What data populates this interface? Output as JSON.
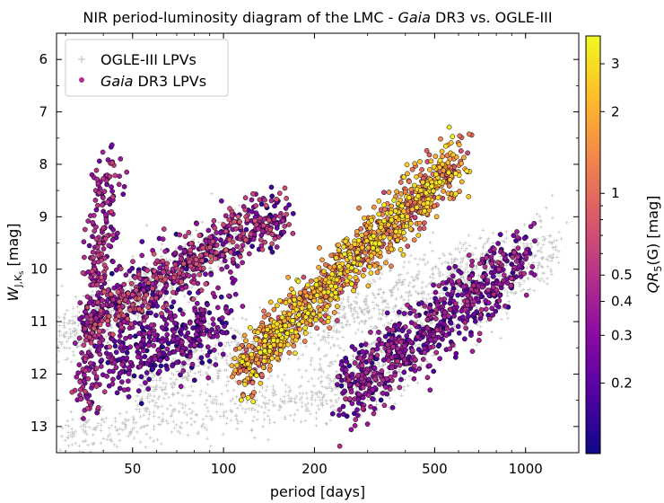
{
  "chart_data": {
    "type": "scatter",
    "title": "NIR period-luminosity diagram of the LMC - Gaia DR3 vs. OGLE-III",
    "title_parts": {
      "before": "NIR period-luminosity diagram of the LMC - ",
      "italic": "Gaia",
      "after": " DR3 vs. OGLE-III"
    },
    "xlabel": "period [days]",
    "x_scale": "log",
    "xlim": [
      28,
      1500
    ],
    "x_ticks": [
      50,
      100,
      200,
      500,
      1000
    ],
    "x_tick_labels": [
      "50",
      "100",
      "200",
      "500",
      "1000"
    ],
    "ylabel": {
      "main": "W",
      "sub": "J,K",
      "subsub": "s",
      "unit": " [mag]"
    },
    "ylim": [
      13.5,
      5.5
    ],
    "y_inverted": true,
    "y_ticks": [
      6,
      7,
      8,
      9,
      10,
      11,
      12,
      13
    ],
    "y_tick_labels": [
      "6",
      "7",
      "8",
      "9",
      "10",
      "11",
      "12",
      "13"
    ],
    "legend": {
      "position": "top-left",
      "entries": [
        {
          "label": "OGLE-III LPVs",
          "marker": "plus",
          "color": "#bdbdbd"
        },
        {
          "label_italic": "Gaia",
          "label_rest": " DR3 LPVs",
          "marker": "circle",
          "color": "#b52f8c"
        }
      ]
    },
    "colorbar": {
      "label": {
        "main": "QR",
        "sub": "5",
        "rest": "(G) [mag]"
      },
      "scale": "log",
      "range": [
        0.11,
        3.8
      ],
      "ticks": [
        0.2,
        0.3,
        0.4,
        0.5,
        1,
        2,
        3
      ],
      "tick_labels": [
        "0.2",
        "0.3",
        "0.4",
        "0.5",
        "1",
        "2",
        "3"
      ],
      "colormap": "plasma",
      "colormap_stops": [
        "#0d0887",
        "#5302a3",
        "#8b0aa5",
        "#b83289",
        "#db5c68",
        "#f48849",
        "#febd2a",
        "#f0f921"
      ]
    },
    "series": [
      {
        "name": "OGLE-III LPVs",
        "color": "#bdbdbd",
        "sequences": [
          {
            "logP_start": 1.4,
            "logP_end": 2.05,
            "W_start": 11.6,
            "W_end": 9.3,
            "width": 0.25,
            "count": 700
          },
          {
            "logP_start": 1.7,
            "logP_end": 2.9,
            "W_start": 12.3,
            "W_end": 9.8,
            "width": 0.3,
            "count": 900
          },
          {
            "logP_start": 2.3,
            "logP_end": 3.1,
            "W_start": 12.4,
            "W_end": 9.5,
            "width": 0.35,
            "count": 700
          },
          {
            "logP_start": 1.45,
            "logP_end": 2.6,
            "W_start": 13.2,
            "W_end": 12.1,
            "width": 0.25,
            "count": 500
          }
        ]
      },
      {
        "name": "Gaia DR3 LPVs",
        "sequences": [
          {
            "logP_start": 1.58,
            "logP_end": 2.2,
            "W_start": 10.9,
            "W_end": 8.9,
            "width": 0.3,
            "qr_min": 0.12,
            "qr_max": 0.8,
            "count": 650
          },
          {
            "logP_start": 2.05,
            "logP_end": 2.78,
            "W_start": 12.0,
            "W_end": 7.9,
            "width": 0.28,
            "qr_min": 0.6,
            "qr_max": 3.5,
            "count": 1100
          },
          {
            "logP_start": 2.4,
            "logP_end": 3.0,
            "W_start": 12.4,
            "W_end": 9.8,
            "width": 0.35,
            "qr_min": 0.13,
            "qr_max": 0.5,
            "count": 700
          },
          {
            "logP_start": 1.54,
            "logP_end": 1.62,
            "W_start": 12.6,
            "W_end": 8.0,
            "width": 0.25,
            "qr_min": 0.2,
            "qr_max": 0.6,
            "count": 300
          },
          {
            "logP_start": 1.62,
            "logP_end": 2.0,
            "W_start": 11.8,
            "W_end": 11.0,
            "width": 0.35,
            "qr_min": 0.12,
            "qr_max": 0.4,
            "count": 350
          }
        ]
      }
    ]
  }
}
